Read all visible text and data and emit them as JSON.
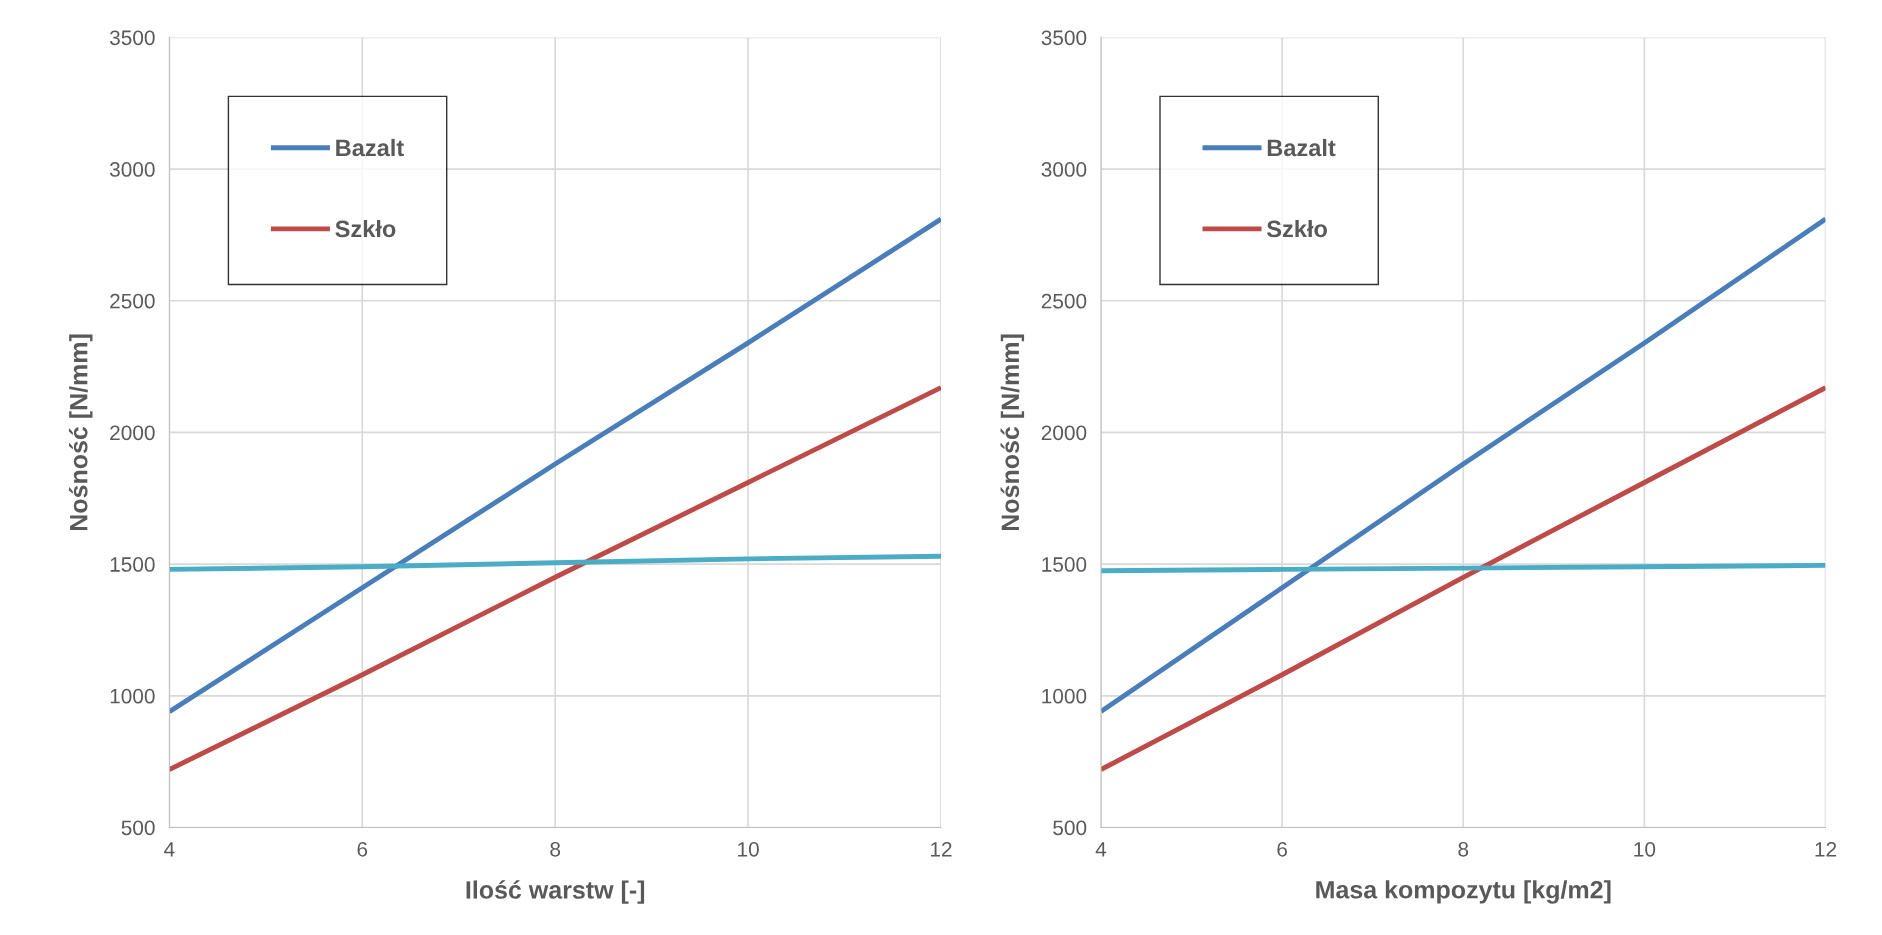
{
  "chart_data": [
    {
      "type": "line",
      "xlabel": "Ilość warstw [-]",
      "ylabel": "Nośność [N/mm]",
      "xlim": [
        4,
        12
      ],
      "xticks": [
        4,
        6,
        8,
        10,
        12
      ],
      "ylim": [
        500,
        3500
      ],
      "yticks": [
        500,
        1000,
        1500,
        2000,
        2500,
        3000,
        3500
      ],
      "grid": true,
      "legend": "top left",
      "x": [
        4,
        6,
        8,
        10,
        12
      ],
      "series": [
        {
          "name": "Bazalt",
          "color": "#4a7ebb",
          "values": [
            940,
            1410,
            1880,
            2340,
            2810
          ]
        },
        {
          "name": "Szkło",
          "color": "#be4b48",
          "values": [
            720,
            1080,
            1450,
            1810,
            2170
          ]
        },
        {
          "color": "#4bacc6",
          "values": [
            1480,
            1490,
            1505,
            1520,
            1530
          ]
        }
      ]
    },
    {
      "type": "line",
      "xlabel": "Masa kompozytu [kg/m2]",
      "ylabel": "Nośność [N/mm]",
      "xlim": [
        4,
        12
      ],
      "xticks": [
        4,
        6,
        8,
        10,
        12
      ],
      "ylim": [
        500,
        3500
      ],
      "yticks": [
        500,
        1000,
        1500,
        2000,
        2500,
        3000,
        3500
      ],
      "grid": true,
      "legend": "top left",
      "x": [
        4,
        6,
        8,
        10,
        12
      ],
      "series": [
        {
          "name": "Bazalt",
          "color": "#4a7ebb",
          "values": [
            940,
            1410,
            1880,
            2340,
            2810
          ]
        },
        {
          "name": "Szkło",
          "color": "#be4b48",
          "values": [
            720,
            1080,
            1450,
            1810,
            2170
          ]
        },
        {
          "color": "#4bacc6",
          "values": [
            1475,
            1480,
            1485,
            1490,
            1495
          ]
        }
      ]
    }
  ]
}
